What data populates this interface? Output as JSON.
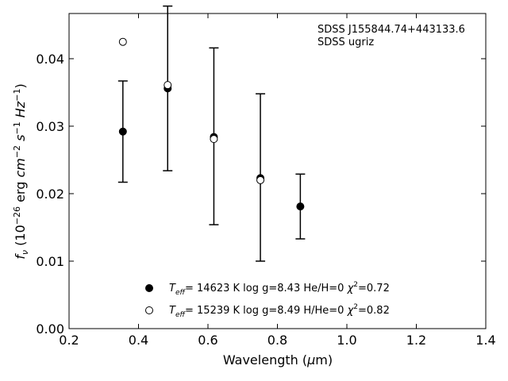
{
  "chart_data": {
    "type": "scatter",
    "annotations": [
      "SDSS J155844.74+443133.6",
      "SDSS ugriz"
    ],
    "xlabel": {
      "base": "Wavelength (",
      "mu": "μ",
      "rest": "m)"
    },
    "ylabel": {
      "f": "f",
      "nu": "ν",
      "paren_open": " (10",
      "exp1": "−26",
      "erg": " erg ",
      "cm": "cm",
      "exp2": "−2",
      "s": "s",
      "exp3": "−1",
      "Hz": "Hz",
      "exp4": "−1",
      "paren_close": ")"
    },
    "xlim": [
      0.2,
      1.4
    ],
    "ylim": [
      0.0,
      0.0467
    ],
    "xticks": [
      "0.2",
      "0.4",
      "0.6",
      "0.8",
      "1.0",
      "1.2",
      "1.4"
    ],
    "yticks": [
      "0.00",
      "0.01",
      "0.02",
      "0.03",
      "0.04"
    ],
    "observed": {
      "x": [
        0.355,
        0.484,
        0.617,
        0.751,
        0.866
      ],
      "y": [
        0.0292,
        0.0356,
        0.0285,
        0.0224,
        0.0181
      ],
      "yerr": [
        0.0075,
        0.0122,
        0.0131,
        0.0124,
        0.0048
      ]
    },
    "series": [
      {
        "marker": "filled",
        "legend_parts": {
          "T": "T",
          "sub": "eff",
          "rest": "= 14623 K  log g=8.43  He/H=0  ",
          "chi": "χ",
          "sup": "2",
          "val": "=0.72"
        },
        "x": [
          0.355,
          0.484,
          0.617,
          0.751,
          0.866
        ],
        "y": [
          0.0292,
          0.0356,
          0.0284,
          0.0223,
          0.0181
        ]
      },
      {
        "marker": "open",
        "legend_parts": {
          "T": "T",
          "sub": "eff",
          "rest": "= 15239 K  log g=8.49  H/He=0  ",
          "chi": "χ",
          "sup": "2",
          "val": "=0.82"
        },
        "x": [
          0.355,
          0.484,
          0.617,
          0.751
        ],
        "y": [
          0.0425,
          0.0361,
          0.0281,
          0.022
        ]
      }
    ],
    "colors": {
      "marker": "#000000",
      "background": "#ffffff"
    }
  }
}
